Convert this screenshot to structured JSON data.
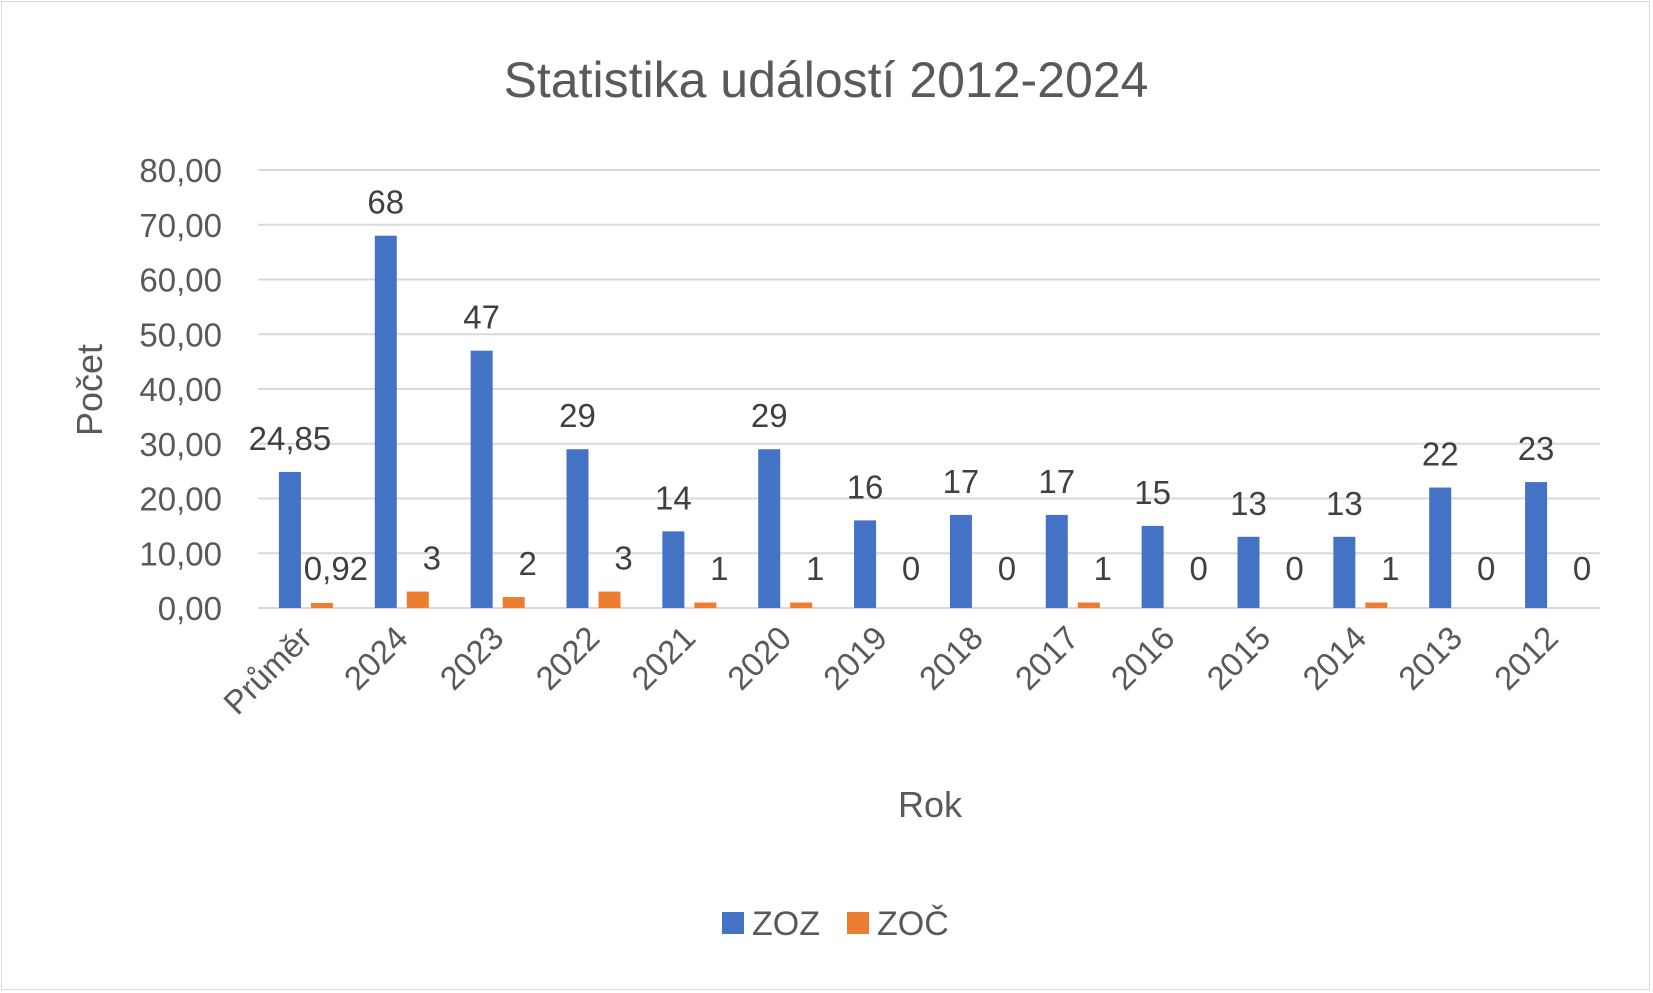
{
  "chart_data": {
    "type": "bar",
    "title": "Statistika událostí 2012-2024",
    "xlabel": "Rok",
    "ylabel": "Počet",
    "categories": [
      "Průměr",
      "2024",
      "2023",
      "2022",
      "2021",
      "2020",
      "2019",
      "2018",
      "2017",
      "2016",
      "2015",
      "2014",
      "2013",
      "2012"
    ],
    "series": [
      {
        "name": "ZOZ",
        "color": "#4472c4",
        "values": [
          24.85,
          68,
          47,
          29,
          14,
          29,
          16,
          17,
          17,
          15,
          13,
          13,
          22,
          23
        ],
        "labels": [
          "24,85",
          "68",
          "47",
          "29",
          "14",
          "29",
          "16",
          "17",
          "17",
          "15",
          "13",
          "13",
          "22",
          "23"
        ]
      },
      {
        "name": "ZOČ",
        "color": "#ed7d31",
        "values": [
          0.92,
          3,
          2,
          3,
          1,
          1,
          0,
          0,
          1,
          0,
          0,
          1,
          0,
          0
        ],
        "labels": [
          "0,92",
          "3",
          "2",
          "3",
          "1",
          "1",
          "0",
          "0",
          "1",
          "0",
          "0",
          "1",
          "0",
          "0"
        ]
      }
    ],
    "ylim": [
      0,
      80
    ],
    "yticks": [
      "0,00",
      "10,00",
      "20,00",
      "30,00",
      "40,00",
      "50,00",
      "60,00",
      "70,00",
      "80,00"
    ],
    "grid": true,
    "legend": "bottom"
  }
}
